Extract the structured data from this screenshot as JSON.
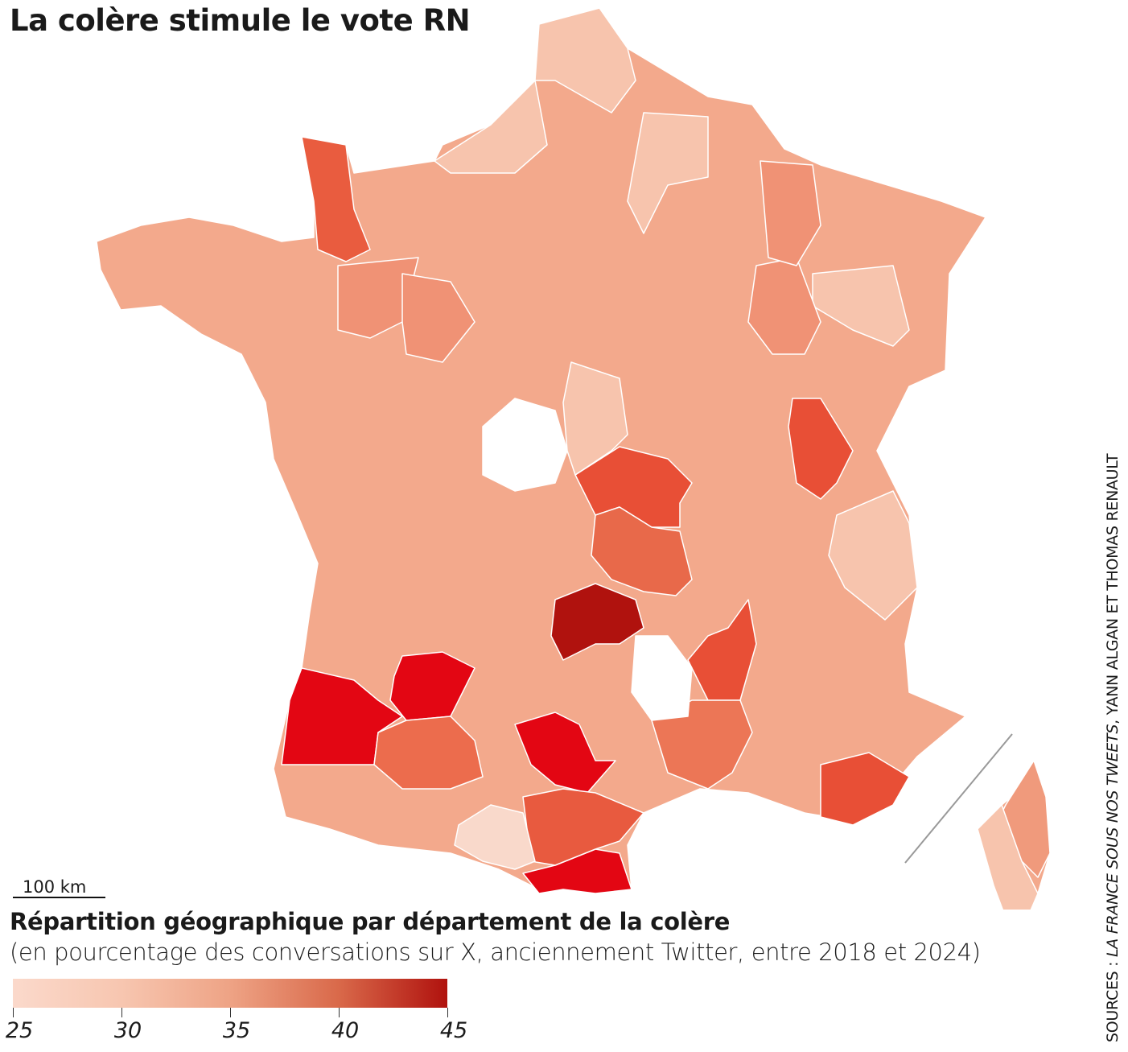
{
  "title": "La colère stimule le vote RN",
  "scale_label": "100 km",
  "subtitle": "Répartition géographique par département de la colère",
  "subtitle_note": "(en pourcentage des conversations sur X, anciennement Twitter, entre 2018 et 2024)",
  "sources_prefix": "SOURCES : ",
  "sources_italic": "LA FRANCE SOUS NOS TWEETS",
  "sources_suffix": ", YANN ALGAN ET THOMAS RENAULT",
  "legend": {
    "min": 25,
    "max": 45,
    "ticks": [
      "25",
      "30",
      "35",
      "40",
      "45"
    ],
    "colors": [
      "#fbd9cb",
      "#f7c6b0",
      "#eea385",
      "#d9694a",
      "#b0120e"
    ]
  },
  "colors": {
    "base": "#f3a98c",
    "border": "#ffffff",
    "no_data": "#ffffff",
    "divider": "#999999"
  },
  "chart_data": {
    "type": "choropleth",
    "title": "La colère stimule le vote RN",
    "unit": "% des conversations",
    "regions": [
      {
        "value": 33,
        "color": "#f3a98c"
      },
      {
        "value": 39,
        "color": "#e95c3f"
      },
      {
        "value": 44,
        "color": "#e30613"
      },
      {
        "value": 44,
        "color": "#e30613"
      },
      {
        "value": 44,
        "color": "#e30613"
      },
      {
        "value": 44,
        "color": "#e30613"
      },
      {
        "value": 45,
        "color": "#b0120e"
      },
      {
        "value": 41,
        "color": "#e84f36"
      },
      {
        "value": 38,
        "color": "#e8694a"
      },
      {
        "value": 41,
        "color": "#e84f36"
      },
      {
        "value": 41,
        "color": "#e84f36"
      },
      {
        "value": 41,
        "color": "#e84f36"
      },
      {
        "value": 40,
        "color": "#e85a3f"
      },
      {
        "value": 37,
        "color": "#ec7656"
      },
      {
        "value": 38,
        "color": "#ec6c4d"
      },
      {
        "value": 26,
        "color": "#f9d9cb"
      },
      {
        "value": null,
        "color": "#ffffff"
      },
      {
        "value": null,
        "color": "#ffffff"
      },
      {
        "value": 30,
        "color": "#f7c4ad"
      },
      {
        "value": 30,
        "color": "#f7c4ad"
      },
      {
        "value": 30,
        "color": "#f7c4ad"
      },
      {
        "value": 30,
        "color": "#f7c4ad"
      },
      {
        "value": 30,
        "color": "#f7c4ad"
      },
      {
        "value": 30,
        "color": "#f7c4ad"
      },
      {
        "value": 36,
        "color": "#f09275"
      },
      {
        "value": 36,
        "color": "#f09275"
      },
      {
        "value": 36,
        "color": "#f09275"
      },
      {
        "value": 36,
        "color": "#f09275"
      },
      {
        "value": 35,
        "color": "#f09a7c"
      },
      {
        "value": 30,
        "color": "#f7c4ad"
      }
    ]
  }
}
